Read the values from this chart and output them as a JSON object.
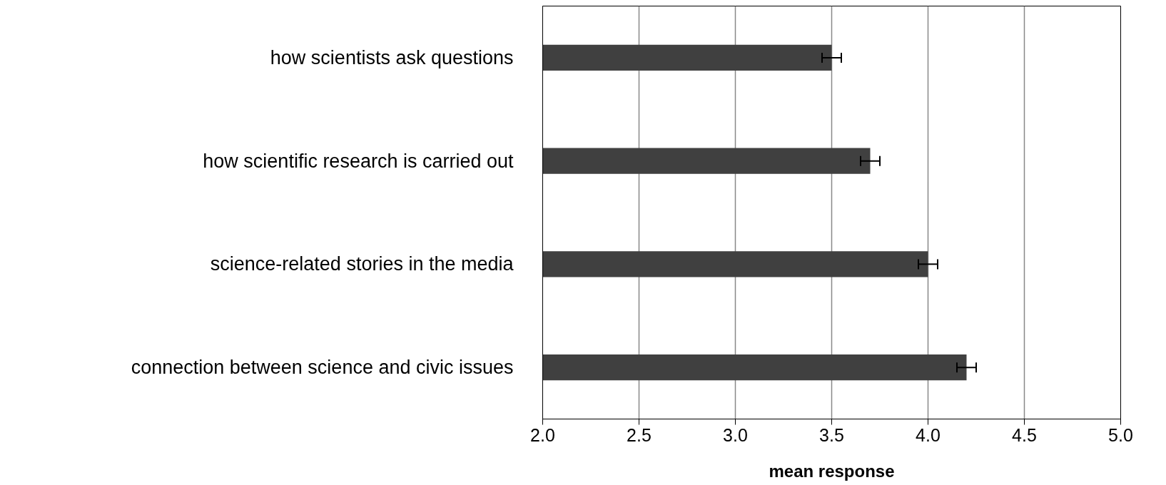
{
  "chart_data": {
    "type": "bar",
    "orientation": "horizontal",
    "xlabel": "mean response",
    "categories": [
      "how scientists ask questions",
      "how scientific research is carried out",
      "science-related stories in the media",
      "connection between science and civic issues"
    ],
    "values": [
      3.5,
      3.7,
      4.0,
      4.2
    ],
    "errors": [
      0.05,
      0.05,
      0.05,
      0.05
    ],
    "color": "#404040",
    "xlim": [
      2.0,
      5.0
    ],
    "xticks": [
      {
        "value": 2.0,
        "label": "2.0"
      },
      {
        "value": 2.5,
        "label": "2.5"
      },
      {
        "value": 3.0,
        "label": "3.0"
      },
      {
        "value": 3.5,
        "label": "3.5"
      },
      {
        "value": 4.0,
        "label": "4.0"
      },
      {
        "value": 4.5,
        "label": "4.5"
      },
      {
        "value": 5.0,
        "label": "5.0"
      }
    ],
    "grid": "x"
  }
}
